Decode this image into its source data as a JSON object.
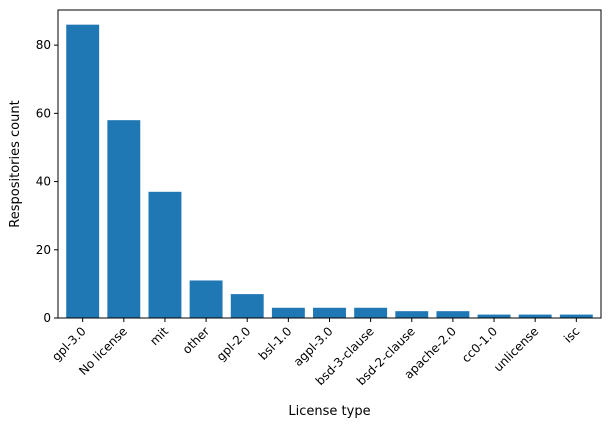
{
  "chart_data": {
    "type": "bar",
    "title": "",
    "xlabel": "License type",
    "ylabel": "Respositories count",
    "categories": [
      "gpl-3.0",
      "No license",
      "mit",
      "other",
      "gpl-2.0",
      "bsl-1.0",
      "agpl-3.0",
      "bsd-3-clause",
      "bsd-2-clause",
      "apache-2.0",
      "cc0-1.0",
      "unlicense",
      "isc"
    ],
    "values": [
      86,
      58,
      37,
      11,
      7,
      3,
      3,
      3,
      2,
      2,
      1,
      1,
      1
    ],
    "yticks": [
      0,
      20,
      40,
      60,
      80
    ],
    "ylim": [
      0,
      90.3
    ],
    "grid": false,
    "bar_color": "#1f77b4"
  }
}
